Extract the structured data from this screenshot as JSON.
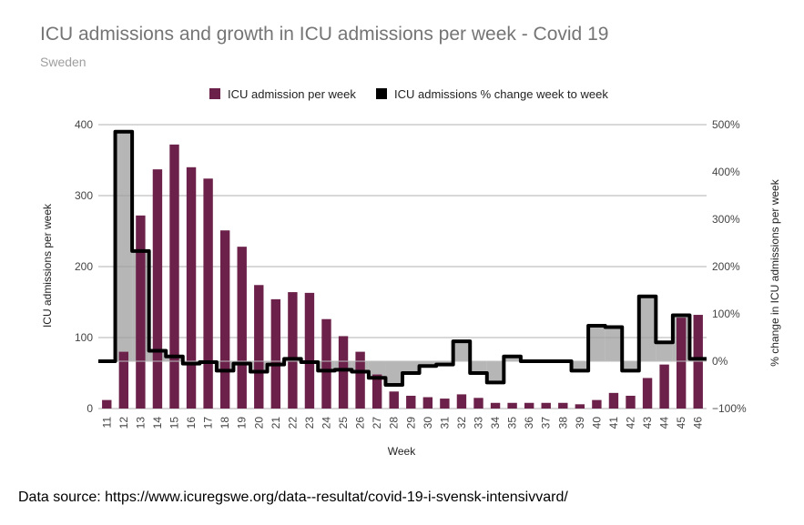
{
  "chart_data": {
    "type": "bar",
    "title": "ICU admissions and growth in ICU admissions per week - Covid 19",
    "subtitle": "Sweden",
    "source": "Data source: https://www.icuregswe.org/data--resultat/covid-19-i-svensk-intensivvard/",
    "xlabel": "Week",
    "ylabel": "ICU admissions per week",
    "y2label": "% change in ICU admissions per week",
    "categories": [
      "11",
      "12",
      "13",
      "14",
      "15",
      "16",
      "17",
      "18",
      "19",
      "20",
      "21",
      "22",
      "23",
      "24",
      "25",
      "26",
      "27",
      "28",
      "29",
      "30",
      "31",
      "32",
      "33",
      "34",
      "35",
      "36",
      "37",
      "38",
      "39",
      "40",
      "41",
      "42",
      "43",
      "44",
      "45",
      "46"
    ],
    "ylim": [
      0,
      400
    ],
    "yticks": [
      0,
      100,
      200,
      300,
      400
    ],
    "y2lim": [
      -100,
      500
    ],
    "y2ticks": [
      -100,
      0,
      100,
      200,
      300,
      400,
      500
    ],
    "y2ticklabels": [
      "−100%",
      "0%",
      "100%",
      "200%",
      "300%",
      "400%",
      "500%"
    ],
    "grid": true,
    "legend": "top",
    "series": [
      {
        "name": "ICU admission per week",
        "type": "bar",
        "axis": "left",
        "color": "#6b2149",
        "values": [
          12,
          80,
          272,
          337,
          372,
          340,
          324,
          251,
          228,
          174,
          154,
          164,
          163,
          126,
          102,
          80,
          48,
          24,
          18,
          16,
          14,
          20,
          15,
          8,
          8,
          8,
          8,
          8,
          6,
          12,
          22,
          18,
          43,
          62,
          128,
          132
        ]
      },
      {
        "name": "ICU admissions % change week to week",
        "type": "stepped-line",
        "axis": "right",
        "color": "#000000",
        "values": [
          0,
          485,
          233,
          22,
          10,
          -5,
          -2,
          -20,
          -5,
          -22,
          -7,
          5,
          -2,
          -20,
          -18,
          -22,
          -35,
          -50,
          -25,
          -10,
          -7,
          42,
          -25,
          -45,
          10,
          0,
          0,
          0,
          -20,
          75,
          72,
          -20,
          137,
          40,
          97,
          5
        ]
      }
    ]
  }
}
